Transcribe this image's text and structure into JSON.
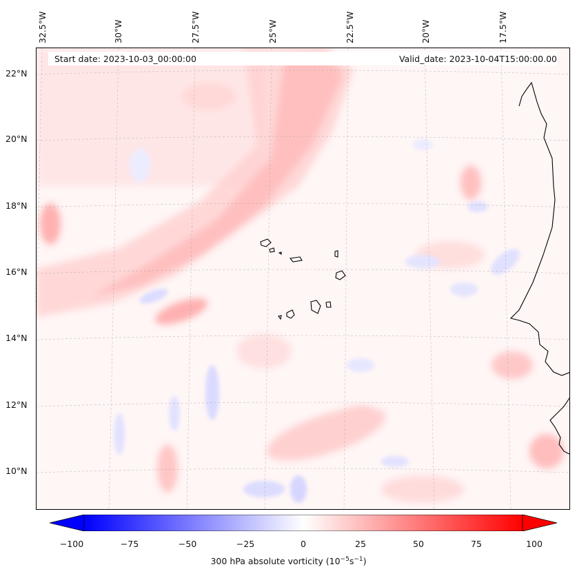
{
  "map": {
    "start_date": "Start date: 2023-10-03_00:00:00",
    "valid_date": "Valid_date: 2023-10-04T15:00:00.00",
    "lon_labels": [
      "32.5°W",
      "30°W",
      "27.5°W",
      "25°W",
      "22.5°W",
      "20°W",
      "17.5°W"
    ],
    "lat_labels": [
      "22°N",
      "20°N",
      "18°N",
      "16°N",
      "14°N",
      "12°N",
      "10°N"
    ],
    "features": [
      "Cape Verde islands",
      "West African coastline"
    ]
  },
  "colorbar": {
    "label_prefix": "300 hPa absolute vorticity (10",
    "label_exp1": "−5",
    "label_mid": "s",
    "label_exp2": "−1",
    "label_suffix": ")",
    "ticks": [
      "−100",
      "−75",
      "−50",
      "−25",
      "0",
      "25",
      "50",
      "75",
      "100"
    ],
    "min": -100,
    "max": 100,
    "colormap": "bwr",
    "extend": "both"
  },
  "colors": {
    "negative": "#0000ff",
    "neutral": "#ffffff",
    "positive": "#ff0000"
  }
}
